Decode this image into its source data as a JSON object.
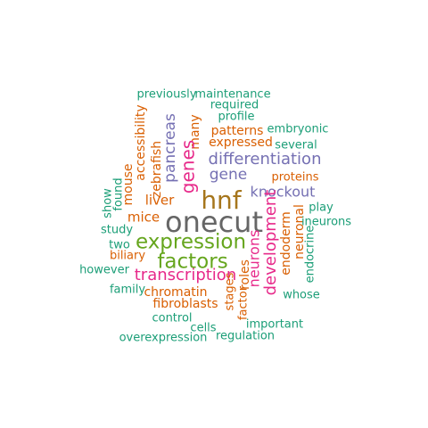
{
  "palette": {
    "green": "#1b9e77",
    "orange": "#d95f02",
    "purple": "#7570b3",
    "magenta": "#e7298a",
    "olive": "#66a61e",
    "gold": "#a6761d",
    "gray": "#666666"
  },
  "words": [
    {
      "text": "previously",
      "color": "green"
    },
    {
      "text": "maintenance",
      "color": "green"
    },
    {
      "text": "required",
      "color": "green"
    },
    {
      "text": "profile",
      "color": "green"
    },
    {
      "text": "patterns",
      "color": "orange"
    },
    {
      "text": "embryonic",
      "color": "green"
    },
    {
      "text": "accessibility",
      "color": "orange"
    },
    {
      "text": "pancreas",
      "color": "purple"
    },
    {
      "text": "many",
      "color": "orange"
    },
    {
      "text": "expressed",
      "color": "orange"
    },
    {
      "text": "several",
      "color": "green"
    },
    {
      "text": "zebrafish",
      "color": "orange"
    },
    {
      "text": "genes",
      "color": "magenta"
    },
    {
      "text": "differentiation",
      "color": "purple"
    },
    {
      "text": "gene",
      "color": "purple"
    },
    {
      "text": "proteins",
      "color": "orange"
    },
    {
      "text": "show",
      "color": "green"
    },
    {
      "text": "found",
      "color": "green"
    },
    {
      "text": "mouse",
      "color": "orange"
    },
    {
      "text": "hnf",
      "color": "gold"
    },
    {
      "text": "knockout",
      "color": "purple"
    },
    {
      "text": "liver",
      "color": "orange"
    },
    {
      "text": "mice",
      "color": "orange"
    },
    {
      "text": "onecut",
      "color": "gray"
    },
    {
      "text": "development",
      "color": "magenta"
    },
    {
      "text": "neuronal",
      "color": "orange"
    },
    {
      "text": "play",
      "color": "green"
    },
    {
      "text": "study",
      "color": "green"
    },
    {
      "text": "expression",
      "color": "olive"
    },
    {
      "text": "endoderm",
      "color": "orange"
    },
    {
      "text": "neurons",
      "color": "magenta"
    },
    {
      "text": "ineurons",
      "color": "green"
    },
    {
      "text": "two",
      "color": "green"
    },
    {
      "text": "endocrine",
      "color": "green"
    },
    {
      "text": "factors",
      "color": "olive"
    },
    {
      "text": "biliary",
      "color": "orange"
    },
    {
      "text": "however",
      "color": "green"
    },
    {
      "text": "transcription",
      "color": "magenta"
    },
    {
      "text": "roles",
      "color": "orange"
    },
    {
      "text": "factor",
      "color": "orange"
    },
    {
      "text": "stages",
      "color": "orange"
    },
    {
      "text": "family",
      "color": "green"
    },
    {
      "text": "chromatin",
      "color": "orange"
    },
    {
      "text": "whose",
      "color": "green"
    },
    {
      "text": "fibroblasts",
      "color": "orange"
    },
    {
      "text": "control",
      "color": "green"
    },
    {
      "text": "cells",
      "color": "green"
    },
    {
      "text": "important",
      "color": "green"
    },
    {
      "text": "overexpression",
      "color": "green"
    },
    {
      "text": "regulation",
      "color": "green"
    }
  ]
}
